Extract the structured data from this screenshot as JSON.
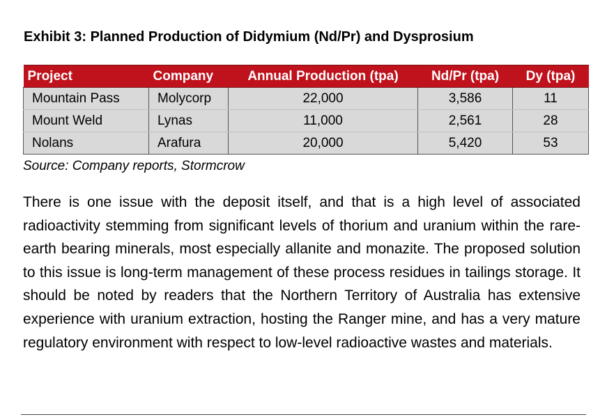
{
  "exhibit": {
    "title": "Exhibit 3: Planned Production of Didymium (Nd/Pr) and Dysprosium"
  },
  "table": {
    "headers": [
      "Project",
      "Company",
      "Annual Production (tpa)",
      "Nd/Pr (tpa)",
      "Dy (tpa)"
    ],
    "rows": [
      [
        "Mountain Pass",
        "Molycorp",
        "22,000",
        "3,586",
        "11"
      ],
      [
        "Mount Weld",
        "Lynas",
        "11,000",
        "2,561",
        "28"
      ],
      [
        "Nolans",
        "Arafura",
        "20,000",
        "5,420",
        "53"
      ]
    ],
    "colors": {
      "header_bg": "#c0121c",
      "header_text": "#ffffff",
      "row_bg": "#d9d9d9"
    }
  },
  "source": "Source:  Company reports, Stormcrow",
  "paragraph": "There is one issue with the deposit itself, and that is a high level of associated radioactivity stemming from significant levels of thorium and uranium within the rare-earth bearing minerals, most especially allanite and monazite.  The proposed solution to this issue is long-term management of these process residues in tailings storage.  It should be noted by readers that the Northern Territory of Australia has extensive experience with uranium extraction, hosting the Ranger mine, and has a very mature regulatory environment with respect to low-level radioactive wastes and materials."
}
